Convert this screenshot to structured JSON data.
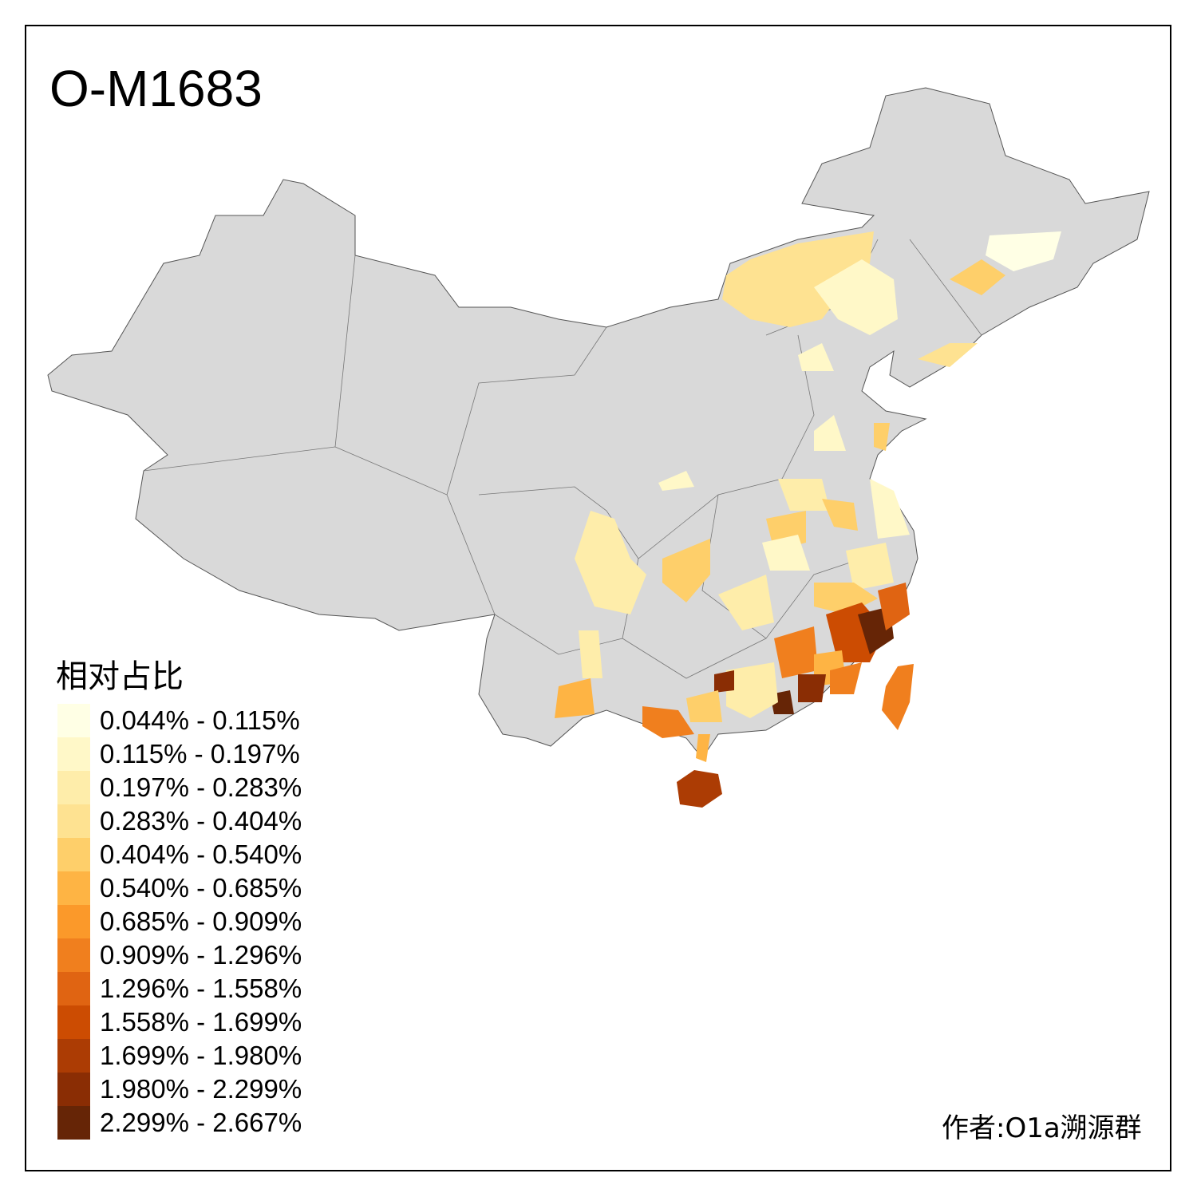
{
  "title": "O-M1683",
  "legend": {
    "title": "相对占比",
    "items": [
      {
        "label": "0.044% - 0.115%",
        "color": "#FFFFE5"
      },
      {
        "label": "0.115% - 0.197%",
        "color": "#FFF8C8"
      },
      {
        "label": "0.197% - 0.283%",
        "color": "#FEEDAA"
      },
      {
        "label": "0.283% - 0.404%",
        "color": "#FEE291"
      },
      {
        "label": "0.404% - 0.540%",
        "color": "#FECF6A"
      },
      {
        "label": "0.540% - 0.685%",
        "color": "#FEB444"
      },
      {
        "label": "0.685% - 0.909%",
        "color": "#FB992A"
      },
      {
        "label": "0.909% - 1.296%",
        "color": "#F07F1E"
      },
      {
        "label": "1.296% - 1.558%",
        "color": "#E06412"
      },
      {
        "label": "1.558% - 1.699%",
        "color": "#CC4C02"
      },
      {
        "label": "1.699% - 1.980%",
        "color": "#AC3C04"
      },
      {
        "label": "1.980% - 2.299%",
        "color": "#8A2D04"
      },
      {
        "label": "2.299% - 2.667%",
        "color": "#662506"
      }
    ]
  },
  "no_data_color": "#D9D9D9",
  "credit": "作者:O1a溯源群"
}
